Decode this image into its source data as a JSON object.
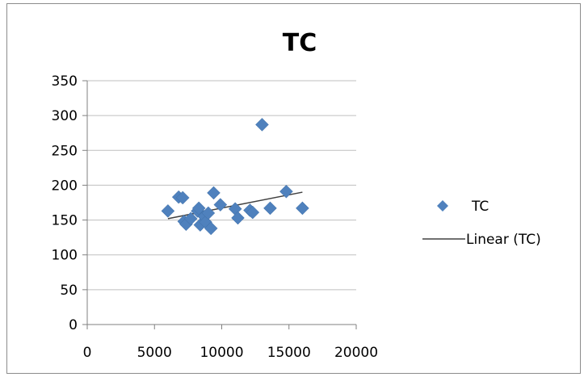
{
  "chart_data": {
    "type": "scatter",
    "title": "TC",
    "xlabel": "",
    "ylabel": "",
    "xlim": [
      0,
      20000
    ],
    "ylim": [
      0,
      350
    ],
    "x_ticks": [
      "0",
      "5000",
      "10000",
      "15000",
      "20000"
    ],
    "y_ticks": [
      "0",
      "50",
      "100",
      "150",
      "200",
      "250",
      "300",
      "350"
    ],
    "grid": "horizontal",
    "legend_position": "right",
    "series": [
      {
        "name": "TC",
        "marker": "diamond",
        "color": "#4F81BD",
        "points": [
          {
            "x": 6000,
            "y": 163
          },
          {
            "x": 6800,
            "y": 183
          },
          {
            "x": 7100,
            "y": 182
          },
          {
            "x": 7200,
            "y": 148
          },
          {
            "x": 7350,
            "y": 144
          },
          {
            "x": 7700,
            "y": 152
          },
          {
            "x": 8200,
            "y": 163
          },
          {
            "x": 8300,
            "y": 167
          },
          {
            "x": 8400,
            "y": 143
          },
          {
            "x": 8700,
            "y": 155
          },
          {
            "x": 8800,
            "y": 147
          },
          {
            "x": 9000,
            "y": 160
          },
          {
            "x": 9200,
            "y": 138
          },
          {
            "x": 9400,
            "y": 189
          },
          {
            "x": 9900,
            "y": 172
          },
          {
            "x": 11000,
            "y": 166
          },
          {
            "x": 11200,
            "y": 153
          },
          {
            "x": 12100,
            "y": 164
          },
          {
            "x": 12300,
            "y": 161
          },
          {
            "x": 13000,
            "y": 287
          },
          {
            "x": 13600,
            "y": 167
          },
          {
            "x": 14800,
            "y": 191
          },
          {
            "x": 16000,
            "y": 167
          }
        ]
      },
      {
        "name": "Linear (TC)",
        "type": "trendline",
        "color": "#404040",
        "points": [
          {
            "x": 6000,
            "y": 152
          },
          {
            "x": 16000,
            "y": 190
          }
        ]
      }
    ]
  }
}
